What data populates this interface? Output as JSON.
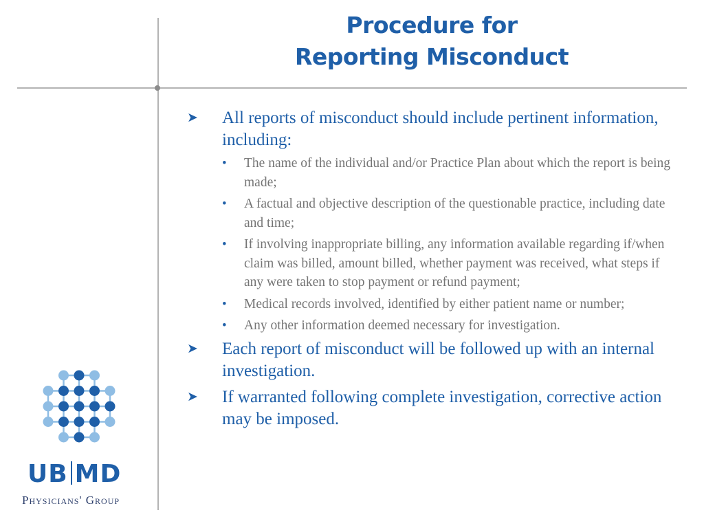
{
  "slide": {
    "title_line1": "Procedure for",
    "title_line2": "Reporting Misconduct"
  },
  "content": {
    "items": [
      {
        "text": "All reports of misconduct should include pertinent information, including:",
        "sub_items": [
          "The name of the individual and/or Practice Plan about which the report is being made;",
          "A factual and objective description of the questionable practice, including date and time;",
          "If involving inappropriate billing, any information available regarding if/when claim was billed, amount billed, whether payment was received, what steps if any were taken to stop payment or refund payment;",
          "Medical records involved, identified by either patient name or number;",
          "Any other information deemed necessary for investigation."
        ]
      },
      {
        "text": "Each report of misconduct will be followed up with an internal investigation."
      },
      {
        "text": "If warranted following complete investigation, corrective action may be imposed."
      }
    ]
  },
  "logo": {
    "left": "UB",
    "right": "MD",
    "tagline": "Physicians' Group"
  },
  "colors": {
    "title": "#1f5fa8",
    "body_blue": "#1f5fa8",
    "body_gray": "#757575",
    "rule": "#b3b3b3",
    "logo_dark": "#1f5fa8",
    "logo_light": "#8fbde4"
  },
  "icons": {
    "main_bullet": "arrow-bullet-icon",
    "sub_bullet": "dot-bullet-icon"
  }
}
